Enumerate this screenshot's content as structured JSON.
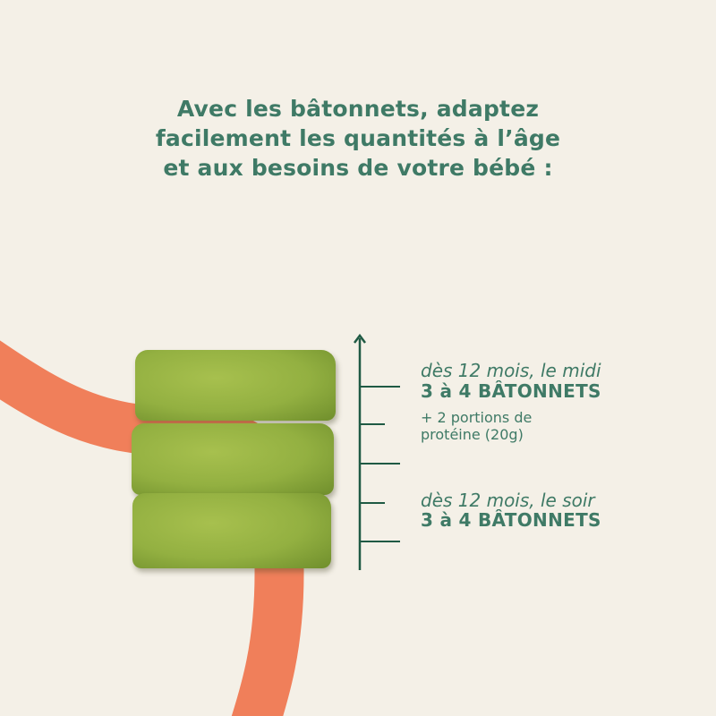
{
  "headline": {
    "lines": [
      "Avec les bâtonnets, adaptez",
      "facilement les quantités à l’âge",
      "et aux besoins de votre bébé :"
    ]
  },
  "scale": {
    "noon": {
      "context": "dès 12 mois, le midi",
      "amount": "3 à 4 BÂTONNETS",
      "extra_line1": "+ 2 portions de",
      "extra_line2": "protéine (20g)"
    },
    "evening": {
      "context": "dès 12 mois, le soir",
      "amount": "3 à 4 BÂTONNETS"
    }
  },
  "colors": {
    "background": "#f4f0e7",
    "text_green": "#3f7a66",
    "axis_green": "#1f5a44",
    "accent_orange": "#f07f5a",
    "stick_green": "#93b041"
  }
}
